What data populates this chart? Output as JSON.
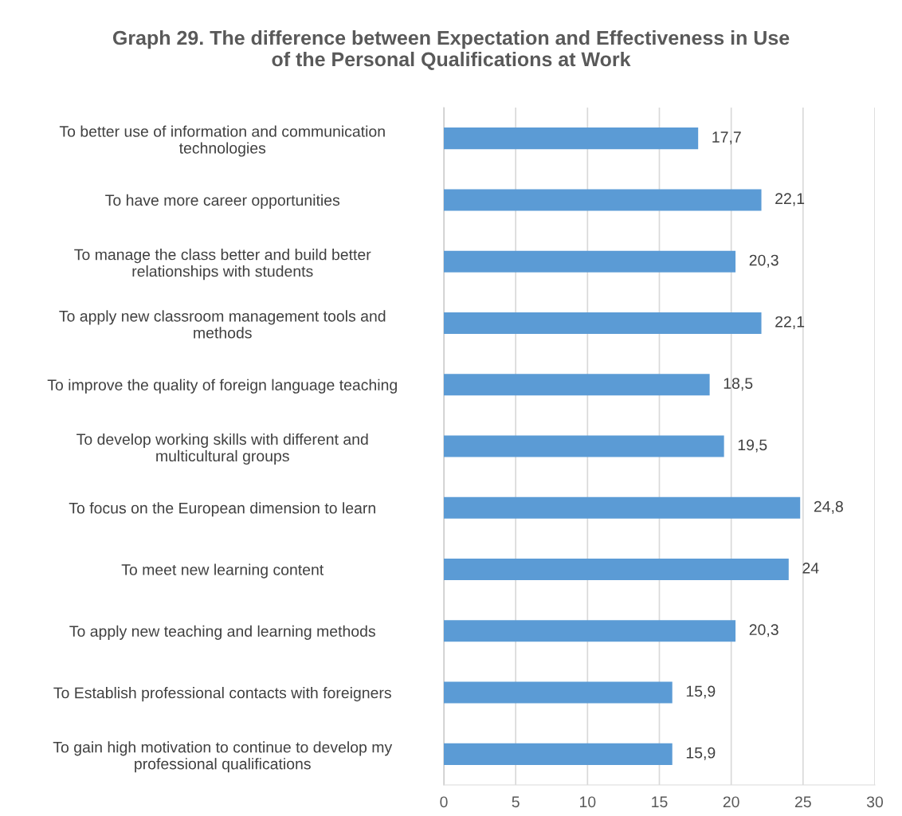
{
  "chart_data": {
    "type": "bar",
    "orientation": "horizontal",
    "title": "Graph 29. The difference between Expectation and Effectiveness in Use\nof the Personal Qualifications at Work",
    "categories": [
      "To better use of information and communication\ntechnologies",
      "To have more career opportunities",
      "To manage the class better and build better\nrelationships with students",
      "To apply new classroom management tools and\nmethods",
      "To improve the quality of foreign language teaching",
      "To develop working skills with different and\nmulticultural groups",
      "To focus on the European dimension to learn",
      "To meet new learning content",
      "To apply new teaching and learning methods",
      "To Establish professional contacts with foreigners",
      "To gain high motivation to continue to develop my\nprofessional qualifications"
    ],
    "values": [
      17.7,
      22.1,
      20.3,
      22.1,
      18.5,
      19.5,
      24.8,
      24,
      20.3,
      15.9,
      15.9
    ],
    "value_labels": [
      "17,7",
      "22,1",
      "20,3",
      "22,1",
      "18,5",
      "19,5",
      "24,8",
      "24",
      "20,3",
      "15,9",
      "15,9"
    ],
    "color": "#5b9bd5",
    "xlim": [
      0,
      30
    ],
    "xticks": [
      0,
      5,
      10,
      15,
      20,
      25,
      30
    ],
    "grid": "x",
    "legend": false
  }
}
